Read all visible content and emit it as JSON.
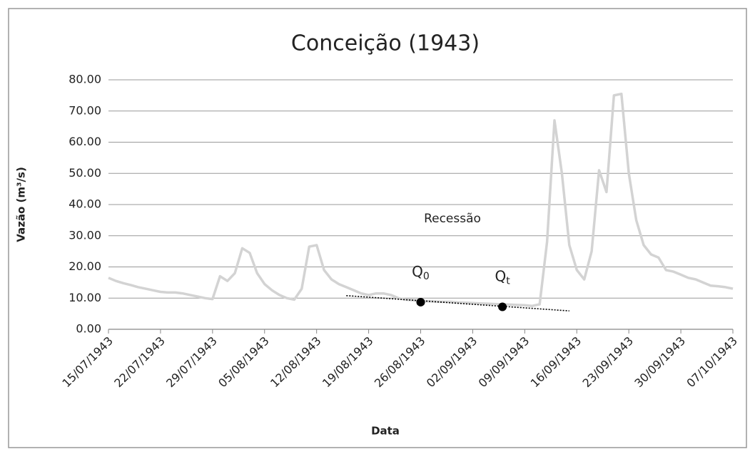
{
  "chart_data": {
    "type": "line",
    "title": "Conceição (1943)",
    "x_label": "Data",
    "y_label": "Vazão (m³/s)",
    "x": [
      "1943-07-15",
      "1943-07-16",
      "1943-07-17",
      "1943-07-18",
      "1943-07-19",
      "1943-07-20",
      "1943-07-21",
      "1943-07-22",
      "1943-07-23",
      "1943-07-24",
      "1943-07-25",
      "1943-07-26",
      "1943-07-27",
      "1943-07-28",
      "1943-07-29",
      "1943-07-30",
      "1943-07-31",
      "1943-08-01",
      "1943-08-02",
      "1943-08-03",
      "1943-08-04",
      "1943-08-05",
      "1943-08-06",
      "1943-08-07",
      "1943-08-08",
      "1943-08-09",
      "1943-08-10",
      "1943-08-11",
      "1943-08-12",
      "1943-08-13",
      "1943-08-14",
      "1943-08-15",
      "1943-08-16",
      "1943-08-17",
      "1943-08-18",
      "1943-08-19",
      "1943-08-20",
      "1943-08-21",
      "1943-08-22",
      "1943-08-23",
      "1943-08-24",
      "1943-08-25",
      "1943-08-26",
      "1943-08-27",
      "1943-08-28",
      "1943-08-29",
      "1943-08-30",
      "1943-08-31",
      "1943-09-01",
      "1943-09-02",
      "1943-09-03",
      "1943-09-04",
      "1943-09-05",
      "1943-09-06",
      "1943-09-07",
      "1943-09-08",
      "1943-09-09",
      "1943-09-10",
      "1943-09-11",
      "1943-09-12",
      "1943-09-13",
      "1943-09-14",
      "1943-09-15",
      "1943-09-16",
      "1943-09-17",
      "1943-09-18",
      "1943-09-19",
      "1943-09-20",
      "1943-09-21",
      "1943-09-22",
      "1943-09-23",
      "1943-09-24",
      "1943-09-25",
      "1943-09-26",
      "1943-09-27",
      "1943-09-28",
      "1943-09-29",
      "1943-09-30",
      "1943-10-01",
      "1943-10-02",
      "1943-10-03",
      "1943-10-04",
      "1943-10-05",
      "1943-10-06",
      "1943-10-07"
    ],
    "series": [
      {
        "color": "#d3d3d3",
        "values": [
          16.5,
          15.5,
          14.8,
          14.2,
          13.5,
          13,
          12.5,
          12,
          11.8,
          11.8,
          11.5,
          11,
          10.5,
          10,
          9.7,
          17,
          15.5,
          18,
          26,
          24.5,
          18,
          14.5,
          12.5,
          11,
          10,
          9.5,
          13,
          26.5,
          27,
          19,
          16,
          14.5,
          13.5,
          12.5,
          11.5,
          11,
          11.5,
          11.5,
          11,
          10,
          9.5,
          9.3,
          9,
          9,
          8.9,
          8.8,
          8.8,
          8.6,
          8.5,
          8.4,
          8.3,
          8.2,
          8.1,
          8,
          7.9,
          7.8,
          7.7,
          7.5,
          8,
          28,
          67,
          50,
          27,
          19,
          16,
          25,
          51,
          44,
          75,
          75.5,
          50,
          35,
          27,
          24,
          23,
          19,
          18.5,
          17.5,
          16.5,
          16,
          15,
          14,
          13.8,
          13.5,
          13
        ]
      }
    ],
    "trendline": {
      "x": [
        "1943-08-16",
        "1943-09-15"
      ],
      "values": [
        10.8,
        5.9
      ],
      "color": "#000000"
    },
    "points": [
      {
        "label": {
          "text": "Q",
          "sub": "0"
        },
        "x": "1943-08-26",
        "value": 8.7
      },
      {
        "label": {
          "text": "Q",
          "sub": "t"
        },
        "x": "1943-09-06",
        "value": 7.2
      }
    ],
    "annotations": [
      "Recessão"
    ],
    "xlim": [
      "1943-07-15",
      "1943-10-07"
    ],
    "xticks": [
      {
        "value": "1943-07-15",
        "label": "15/07/1943"
      },
      {
        "value": "1943-07-22",
        "label": "22/07/1943"
      },
      {
        "value": "1943-07-29",
        "label": "29/07/1943"
      },
      {
        "value": "1943-08-05",
        "label": "05/08/1943"
      },
      {
        "value": "1943-08-12",
        "label": "12/08/1943"
      },
      {
        "value": "1943-08-19",
        "label": "19/08/1943"
      },
      {
        "value": "1943-08-26",
        "label": "26/08/1943"
      },
      {
        "value": "1943-09-02",
        "label": "02/09/1943"
      },
      {
        "value": "1943-09-09",
        "label": "09/09/1943"
      },
      {
        "value": "1943-09-16",
        "label": "16/09/1943"
      },
      {
        "value": "1943-09-23",
        "label": "23/09/1943"
      },
      {
        "value": "1943-09-30",
        "label": "30/09/1943"
      },
      {
        "value": "1943-10-07",
        "label": "07/10/1943"
      }
    ],
    "ylim": [
      0,
      80
    ],
    "yticks": [
      {
        "value": 0,
        "label": "0.00"
      },
      {
        "value": 10,
        "label": "10.00"
      },
      {
        "value": 20,
        "label": "20.00"
      },
      {
        "value": 30,
        "label": "30.00"
      },
      {
        "value": 40,
        "label": "40.00"
      },
      {
        "value": 50,
        "label": "50.00"
      },
      {
        "value": 60,
        "label": "60.00"
      },
      {
        "value": 70,
        "label": "70.00"
      },
      {
        "value": 80,
        "label": "80.00"
      }
    ],
    "grid": true
  }
}
